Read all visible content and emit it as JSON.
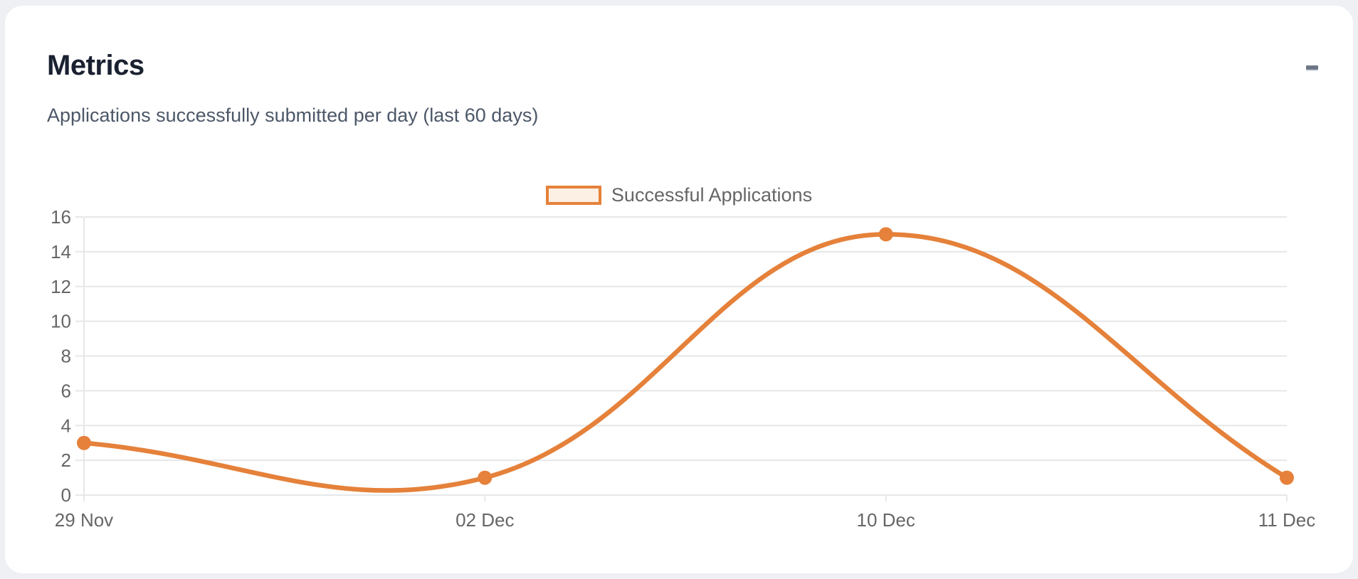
{
  "card": {
    "title": "Metrics",
    "subtitle": "Applications successfully submitted per day (last 60 days)",
    "collapse_icon": "minus"
  },
  "chart_data": {
    "type": "line",
    "categories": [
      "29 Nov",
      "02 Dec",
      "10 Dec",
      "11 Dec"
    ],
    "series": [
      {
        "name": "Successful Applications",
        "values": [
          3,
          1,
          15,
          1
        ]
      }
    ],
    "title": "Applications successfully submitted per day (last 60 days)",
    "xlabel": "",
    "ylabel": "",
    "ylim": [
      0,
      16
    ],
    "yticks": [
      0,
      2,
      4,
      6,
      8,
      10,
      12,
      14,
      16
    ],
    "grid": "horizontal",
    "smooth": true,
    "legend_position": "top-center",
    "colors": {
      "line": "#e5813a",
      "point_fill": "#e5813a",
      "legend_fill": "#fcefe3",
      "grid": "#e6e7e9",
      "axis_text": "#666666"
    }
  }
}
